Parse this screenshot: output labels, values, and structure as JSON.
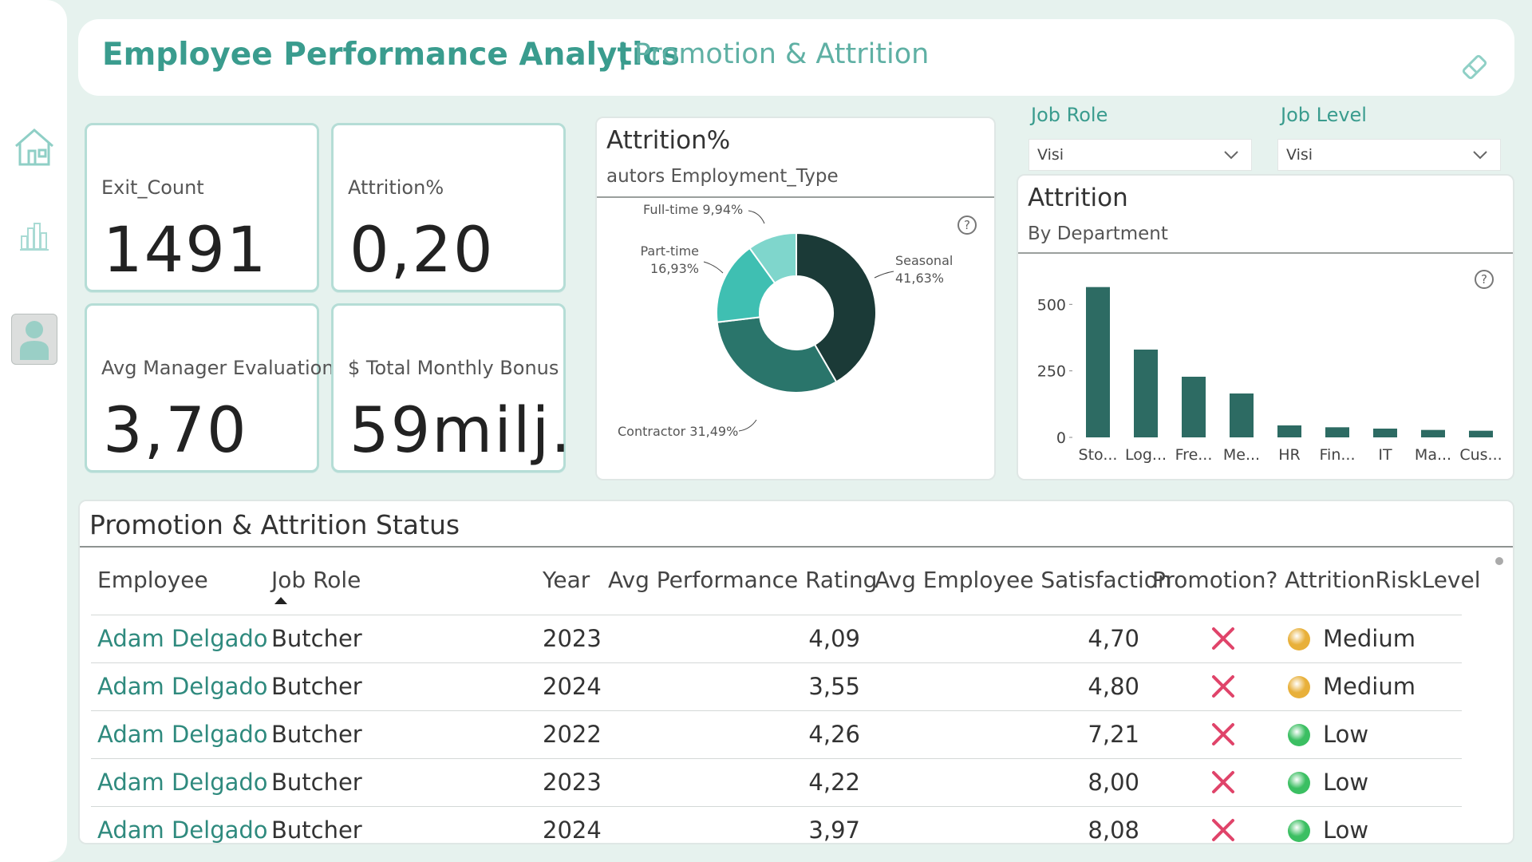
{
  "header": {
    "title": "Employee Performance Analytics",
    "separator": "|",
    "subtitle": "Promotion & Attrition"
  },
  "kpis": [
    {
      "label": "Exit_Count",
      "value": "1491"
    },
    {
      "label": "Attrition%",
      "value": "0,20"
    },
    {
      "label": "Avg Manager Evaluation",
      "value": "3,70"
    },
    {
      "label": "$ Total Monthly Bonus",
      "value": "59milj."
    }
  ],
  "slicers": {
    "job_role": {
      "label": "Job Role",
      "value": "Visi"
    },
    "job_level": {
      "label": "Job Level",
      "value": "Visi"
    }
  },
  "donut_panel": {
    "title": "Attrition%",
    "subtitle": "autors Employment_Type",
    "help": "?"
  },
  "bar_panel": {
    "title": "Attrition",
    "subtitle": "By Department",
    "help": "?"
  },
  "chart_data": [
    {
      "type": "pie",
      "title": "Attrition%",
      "subtitle": "autors Employment_Type",
      "slices": [
        {
          "label": "Seasonal",
          "value_label": "41,63%",
          "value": 41.63,
          "color": "#1b3a37"
        },
        {
          "label": "Contractor",
          "value_label": "31,49%",
          "value": 31.49,
          "color": "#2a756b"
        },
        {
          "label": "Part-time",
          "value_label": "16,93%",
          "value": 16.93,
          "color": "#3fbfb2"
        },
        {
          "label": "Full-time",
          "value_label": "9,94%",
          "value": 9.94,
          "color": "#7fd6cc"
        }
      ],
      "display_labels": [
        "Seasonal",
        "41,63%",
        "Contractor 31,49%",
        "Part-time",
        "16,93%",
        "Full-time 9,94%"
      ]
    },
    {
      "type": "bar",
      "title": "Attrition",
      "subtitle": "By Department",
      "categories": [
        "Sto...",
        "Log...",
        "Fre...",
        "Me...",
        "HR",
        "Fin...",
        "IT",
        "Ma...",
        "Cus..."
      ],
      "values": [
        565,
        330,
        228,
        165,
        45,
        38,
        33,
        28,
        25
      ],
      "yticks": [
        "0",
        "250",
        "500"
      ],
      "ytick_values": [
        0,
        250,
        500
      ],
      "ylim": [
        0,
        600
      ],
      "color": "#2d6b63"
    }
  ],
  "table": {
    "title": "Promotion & Attrition Status",
    "headers": [
      "Employee",
      "Job Role",
      "Year",
      "Avg Performance Rating",
      "Avg Employee Satisfaction",
      "Promotion?",
      "AttritionRiskLevel"
    ],
    "rows": [
      {
        "employee": "Adam Delgado",
        "role": "Butcher",
        "year": "2023",
        "perf": "4,09",
        "sat": "4,70",
        "promotion": "no",
        "risk": "Medium",
        "risk_color": "#e8b03a"
      },
      {
        "employee": "Adam Delgado",
        "role": "Butcher",
        "year": "2024",
        "perf": "3,55",
        "sat": "4,80",
        "promotion": "no",
        "risk": "Medium",
        "risk_color": "#e8b03a"
      },
      {
        "employee": "Adam Delgado",
        "role": "Butcher",
        "year": "2022",
        "perf": "4,26",
        "sat": "7,21",
        "promotion": "no",
        "risk": "Low",
        "risk_color": "#3bbf62"
      },
      {
        "employee": "Adam Delgado",
        "role": "Butcher",
        "year": "2023",
        "perf": "4,22",
        "sat": "8,00",
        "promotion": "no",
        "risk": "Low",
        "risk_color": "#3bbf62"
      },
      {
        "employee": "Adam Delgado",
        "role": "Butcher",
        "year": "2024",
        "perf": "3,97",
        "sat": "8,08",
        "promotion": "no",
        "risk": "Low",
        "risk_color": "#3bbf62"
      }
    ]
  },
  "colors": {
    "accent": "#3a9c8e",
    "no_mark": "#e0446a",
    "card_border": "#b5ddd6"
  },
  "icons": [
    "home-icon",
    "bar-chart-icon",
    "user-icon",
    "eraser-icon",
    "help-icon",
    "chevron-down-icon",
    "sort-ascending-icon",
    "x-mark-icon"
  ]
}
